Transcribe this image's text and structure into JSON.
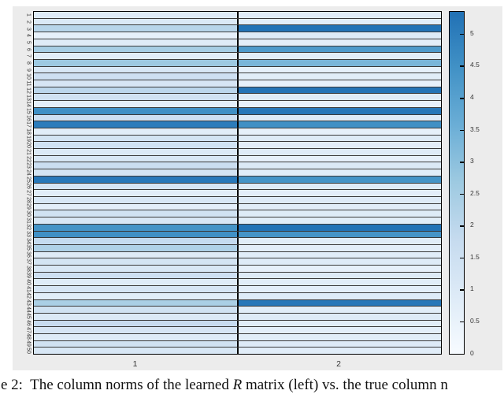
{
  "figure": {
    "background_color": "#ececec",
    "page_background": "#ffffff",
    "caption": {
      "prefix": "e 2:  The column norms of the learned ",
      "math_symbol": "R",
      "suffix": " matrix (left) vs. the true column n"
    }
  },
  "chart_data": {
    "type": "heatmap",
    "title": "",
    "xlabel": "",
    "ylabel": "",
    "columns": [
      "1",
      "2"
    ],
    "vmin": 0,
    "vmax": 5.35,
    "grid": true,
    "legend_position": "colorbar-right",
    "colorbar": {
      "ticks": [
        {
          "value": 0,
          "label": "0"
        },
        {
          "value": 0.5,
          "label": "0.5"
        },
        {
          "value": 1,
          "label": "1"
        },
        {
          "value": 1.5,
          "label": "1.5"
        },
        {
          "value": 2,
          "label": "2"
        },
        {
          "value": 2.5,
          "label": "2.5"
        },
        {
          "value": 3,
          "label": "3"
        },
        {
          "value": 3.5,
          "label": "3.5"
        },
        {
          "value": 4,
          "label": "4"
        },
        {
          "value": 4.5,
          "label": "4.5"
        },
        {
          "value": 5,
          "label": "5"
        }
      ]
    },
    "colormap": {
      "name": "Blues (truncated)",
      "tmax": 0.75,
      "stops": [
        [
          0,
          "#f7fbff"
        ],
        [
          0.125,
          "#deebf7"
        ],
        [
          0.25,
          "#c6dbef"
        ],
        [
          0.375,
          "#9ecae1"
        ],
        [
          0.5,
          "#6baed6"
        ],
        [
          0.625,
          "#4292c6"
        ],
        [
          0.75,
          "#2171b5"
        ]
      ]
    },
    "rows": [
      {
        "label": "1",
        "values": [
          0.9,
          0.8
        ]
      },
      {
        "label": "2",
        "values": [
          1.0,
          0.7
        ]
      },
      {
        "label": "3",
        "values": [
          2.1,
          5.3
        ]
      },
      {
        "label": "4",
        "values": [
          0.6,
          0.9
        ]
      },
      {
        "label": "5",
        "values": [
          0.9,
          0.7
        ]
      },
      {
        "label": "6",
        "values": [
          2.5,
          4.2
        ]
      },
      {
        "label": "7",
        "values": [
          0.8,
          0.8
        ]
      },
      {
        "label": "8",
        "values": [
          2.7,
          3.3
        ]
      },
      {
        "label": "9",
        "values": [
          1.1,
          0.6
        ]
      },
      {
        "label": "10",
        "values": [
          1.5,
          0.8
        ]
      },
      {
        "label": "11",
        "values": [
          1.2,
          0.6
        ]
      },
      {
        "label": "12",
        "values": [
          2.0,
          5.3
        ]
      },
      {
        "label": "13",
        "values": [
          1.4,
          0.9
        ]
      },
      {
        "label": "14",
        "values": [
          0.7,
          0.6
        ]
      },
      {
        "label": "15",
        "values": [
          4.5,
          5.2
        ]
      },
      {
        "label": "16",
        "values": [
          1.5,
          0.9
        ]
      },
      {
        "label": "17",
        "values": [
          5.05,
          4.5
        ]
      },
      {
        "label": "18",
        "values": [
          0.8,
          0.6
        ]
      },
      {
        "label": "19",
        "values": [
          1.3,
          0.9
        ]
      },
      {
        "label": "20",
        "values": [
          1.4,
          0.7
        ]
      },
      {
        "label": "21",
        "values": [
          1.0,
          0.9
        ]
      },
      {
        "label": "22",
        "values": [
          1.1,
          0.6
        ]
      },
      {
        "label": "23",
        "values": [
          1.6,
          1.0
        ]
      },
      {
        "label": "24",
        "values": [
          1.3,
          0.8
        ]
      },
      {
        "label": "25",
        "values": [
          5.15,
          4.4
        ]
      },
      {
        "label": "26",
        "values": [
          1.2,
          0.9
        ]
      },
      {
        "label": "27",
        "values": [
          0.8,
          0.7
        ]
      },
      {
        "label": "28",
        "values": [
          1.1,
          0.9
        ]
      },
      {
        "label": "29",
        "values": [
          0.7,
          0.8
        ]
      },
      {
        "label": "30",
        "values": [
          1.4,
          0.9
        ]
      },
      {
        "label": "31",
        "values": [
          1.1,
          0.8
        ]
      },
      {
        "label": "32",
        "values": [
          4.4,
          5.3
        ]
      },
      {
        "label": "33",
        "values": [
          4.5,
          4.4
        ]
      },
      {
        "label": "34",
        "values": [
          1.8,
          0.8
        ]
      },
      {
        "label": "35",
        "values": [
          2.3,
          0.7
        ]
      },
      {
        "label": "36",
        "values": [
          0.9,
          0.8
        ]
      },
      {
        "label": "37",
        "values": [
          1.3,
          0.9
        ]
      },
      {
        "label": "38",
        "values": [
          1.1,
          0.6
        ]
      },
      {
        "label": "39",
        "values": [
          1.5,
          0.9
        ]
      },
      {
        "label": "40",
        "values": [
          0.9,
          0.8
        ]
      },
      {
        "label": "41",
        "values": [
          1.2,
          0.7
        ]
      },
      {
        "label": "42",
        "values": [
          0.8,
          0.9
        ]
      },
      {
        "label": "43",
        "values": [
          2.4,
          5.2
        ]
      },
      {
        "label": "44",
        "values": [
          1.4,
          0.8
        ]
      },
      {
        "label": "45",
        "values": [
          1.0,
          0.9
        ]
      },
      {
        "label": "46",
        "values": [
          1.7,
          0.8
        ]
      },
      {
        "label": "47",
        "values": [
          1.2,
          0.7
        ]
      },
      {
        "label": "48",
        "values": [
          0.9,
          0.8
        ]
      },
      {
        "label": "49",
        "values": [
          1.4,
          0.9
        ]
      },
      {
        "label": "50",
        "values": [
          1.1,
          0.8
        ]
      }
    ]
  }
}
